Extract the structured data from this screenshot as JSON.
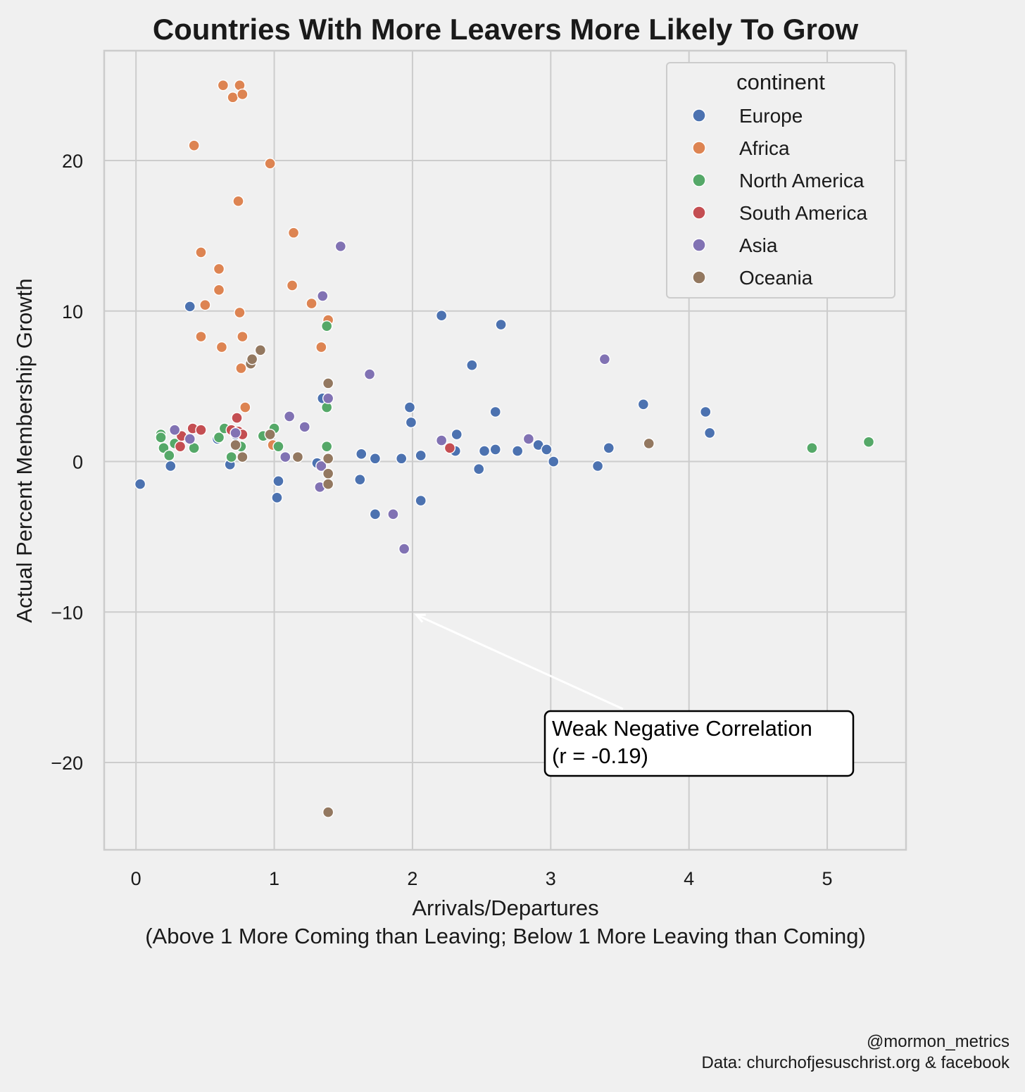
{
  "chart_data": {
    "type": "scatter",
    "title": "Countries With More Leavers More Likely To Grow",
    "xlabel": "Arrivals/Departures",
    "xlabel_sub": "(Above 1 More Coming than Leaving; Below 1 More Leaving than Coming)",
    "ylabel": "Actual Percent Membership Growth",
    "xlim": [
      -0.23,
      5.57
    ],
    "ylim": [
      -25.8,
      27.3
    ],
    "x_ticks": [
      0,
      1,
      2,
      3,
      4,
      5
    ],
    "y_ticks": [
      -20,
      -10,
      0,
      10,
      20
    ],
    "y_tick_labels": [
      "−20",
      "−10",
      "0",
      "10",
      "20"
    ],
    "grid": true,
    "legend": {
      "title": "continent",
      "placement": "top-right"
    },
    "annotation": {
      "text_line1": "Weak Negative Correlation",
      "text_line2": "(r = -0.19)",
      "text_at": [
        3.0,
        -19.1
      ],
      "arrow_to": [
        2.03,
        -10.2
      ]
    },
    "series": [
      {
        "name": "Europe",
        "color": "#4c72b0",
        "points": [
          [
            0.03,
            -1.5
          ],
          [
            0.25,
            -0.3
          ],
          [
            0.39,
            10.3
          ],
          [
            0.59,
            1.5
          ],
          [
            0.68,
            -0.2
          ],
          [
            0.72,
            1.8
          ],
          [
            1.02,
            -2.4
          ],
          [
            1.03,
            -1.3
          ],
          [
            1.31,
            -0.1
          ],
          [
            1.35,
            4.2
          ],
          [
            1.62,
            -1.2
          ],
          [
            1.63,
            0.5
          ],
          [
            1.73,
            0.2
          ],
          [
            1.73,
            -3.5
          ],
          [
            1.92,
            0.2
          ],
          [
            1.98,
            3.6
          ],
          [
            1.99,
            2.6
          ],
          [
            2.06,
            0.4
          ],
          [
            2.06,
            -2.6
          ],
          [
            2.21,
            9.7
          ],
          [
            2.31,
            0.7
          ],
          [
            2.32,
            1.8
          ],
          [
            2.43,
            6.4
          ],
          [
            2.48,
            -0.5
          ],
          [
            2.52,
            0.7
          ],
          [
            2.6,
            3.3
          ],
          [
            2.6,
            0.8
          ],
          [
            2.64,
            9.1
          ],
          [
            2.76,
            0.7
          ],
          [
            2.91,
            1.1
          ],
          [
            2.97,
            0.8
          ],
          [
            3.02,
            0.0
          ],
          [
            3.34,
            -0.3
          ],
          [
            3.42,
            0.9
          ],
          [
            3.67,
            3.8
          ],
          [
            4.12,
            3.3
          ],
          [
            4.15,
            1.9
          ]
        ]
      },
      {
        "name": "Africa",
        "color": "#dd8452",
        "points": [
          [
            0.42,
            21.0
          ],
          [
            0.47,
            13.9
          ],
          [
            0.47,
            8.3
          ],
          [
            0.5,
            10.4
          ],
          [
            0.6,
            11.4
          ],
          [
            0.6,
            12.8
          ],
          [
            0.62,
            7.6
          ],
          [
            0.63,
            25.0
          ],
          [
            0.7,
            24.2
          ],
          [
            0.74,
            17.3
          ],
          [
            0.75,
            25.0
          ],
          [
            0.75,
            9.9
          ],
          [
            0.76,
            6.2
          ],
          [
            0.77,
            8.3
          ],
          [
            0.77,
            24.4
          ],
          [
            0.79,
            3.6
          ],
          [
            0.97,
            19.8
          ],
          [
            0.99,
            1.1
          ],
          [
            1.13,
            11.7
          ],
          [
            1.14,
            15.2
          ],
          [
            1.27,
            10.5
          ],
          [
            1.34,
            7.6
          ],
          [
            1.39,
            9.4
          ]
        ]
      },
      {
        "name": "North America",
        "color": "#55a868",
        "points": [
          [
            0.18,
            1.8
          ],
          [
            0.18,
            1.6
          ],
          [
            0.2,
            0.9
          ],
          [
            0.24,
            0.4
          ],
          [
            0.28,
            1.2
          ],
          [
            0.42,
            0.9
          ],
          [
            0.6,
            1.6
          ],
          [
            0.64,
            2.2
          ],
          [
            0.69,
            0.3
          ],
          [
            0.76,
            1.0
          ],
          [
            0.92,
            1.7
          ],
          [
            1.0,
            2.2
          ],
          [
            1.03,
            1.0
          ],
          [
            1.38,
            9.0
          ],
          [
            1.38,
            3.6
          ],
          [
            1.38,
            1.0
          ],
          [
            4.89,
            0.9
          ],
          [
            5.3,
            1.3
          ]
        ]
      },
      {
        "name": "South America",
        "color": "#c44e52",
        "points": [
          [
            0.32,
            1.0
          ],
          [
            0.33,
            1.7
          ],
          [
            0.41,
            2.2
          ],
          [
            0.47,
            2.1
          ],
          [
            0.69,
            2.1
          ],
          [
            0.73,
            2.9
          ],
          [
            0.74,
            2.0
          ],
          [
            0.77,
            1.8
          ],
          [
            2.27,
            0.9
          ]
        ]
      },
      {
        "name": "Asia",
        "color": "#8172b3",
        "points": [
          [
            0.28,
            2.1
          ],
          [
            0.39,
            1.5
          ],
          [
            0.72,
            1.9
          ],
          [
            1.08,
            0.3
          ],
          [
            1.11,
            3.0
          ],
          [
            1.22,
            2.3
          ],
          [
            1.33,
            -1.7
          ],
          [
            1.34,
            -0.3
          ],
          [
            1.35,
            11.0
          ],
          [
            1.39,
            4.2
          ],
          [
            1.48,
            14.3
          ],
          [
            1.69,
            5.8
          ],
          [
            1.86,
            -3.5
          ],
          [
            1.94,
            -5.8
          ],
          [
            2.21,
            1.4
          ],
          [
            2.84,
            1.5
          ],
          [
            3.39,
            6.8
          ]
        ]
      },
      {
        "name": "Oceania",
        "color": "#937860",
        "points": [
          [
            0.72,
            1.1
          ],
          [
            0.77,
            0.3
          ],
          [
            0.83,
            6.5
          ],
          [
            0.84,
            6.8
          ],
          [
            0.9,
            7.4
          ],
          [
            0.97,
            1.8
          ],
          [
            1.17,
            0.3
          ],
          [
            1.39,
            5.2
          ],
          [
            1.39,
            0.2
          ],
          [
            1.39,
            -0.8
          ],
          [
            1.39,
            -1.5
          ],
          [
            1.39,
            -23.3
          ],
          [
            3.71,
            1.2
          ]
        ]
      }
    ]
  },
  "credits": {
    "handle": "@mormon_metrics",
    "source": "Data: churchofjesuschrist.org & facebook"
  }
}
